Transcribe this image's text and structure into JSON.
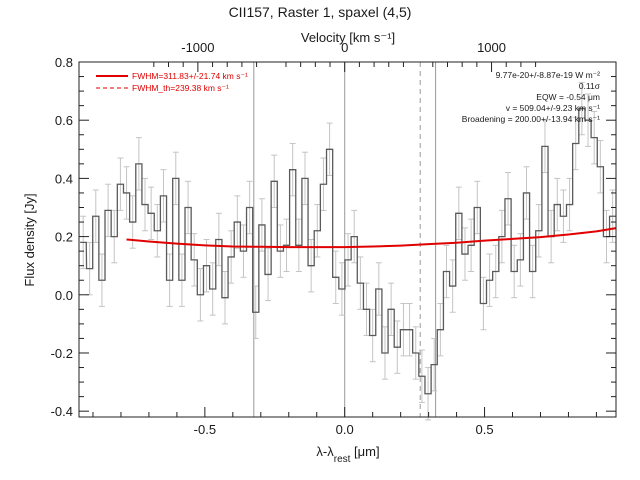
{
  "chart_data": {
    "type": "line",
    "title": "CII157, Raster 1, spaxel (4,5)",
    "xlabel_html": "λ-λ<tspan baseline-shift=\"sub\" font-size=\"10\">rest</tspan> [μm]",
    "xlabel_plain": "λ-λrest [μm]",
    "ylabel": "Flux density [Jy]",
    "top_axis_label": "Velocity [km s⁻¹]",
    "xlim": [
      -0.95,
      0.97
    ],
    "ylim": [
      -0.42,
      0.8
    ],
    "x_ticks": [
      "-0.5",
      "0.0",
      "0.5"
    ],
    "x_tick_values": [
      -0.5,
      0.0,
      0.5
    ],
    "y_ticks": [
      "-0.4",
      "-0.2",
      "0.0",
      "0.2",
      "0.4",
      "0.6",
      "0.8"
    ],
    "y_tick_values": [
      -0.4,
      -0.2,
      0.0,
      0.2,
      0.4,
      0.6,
      0.8
    ],
    "top_ticks": [
      "-1000",
      "0",
      "1000"
    ],
    "top_tick_x_values": [
      -0.525,
      0.0,
      0.525
    ],
    "legend": [
      {
        "label": "FWHM=311.83+/-21.74 km s⁻¹",
        "style": "solid",
        "color": "#e00000"
      },
      {
        "label": "FWHM_th=239.38 km s⁻¹",
        "style": "dashed",
        "color": "#e00000"
      }
    ],
    "annotations": [
      "9.77e-20+/-8.87e-19 W m⁻²",
      "0.11σ",
      "EQW = -0.54 μm",
      "v = 509.04+/-9.23 km s⁻¹",
      "Broadening = 200.00+/-13.94 km s⁻¹"
    ],
    "vertical_lines": [
      {
        "x": -0.325,
        "style": "solid"
      },
      {
        "x": 0.0,
        "style": "solid"
      },
      {
        "x": 0.325,
        "style": "solid"
      },
      {
        "x": 0.27,
        "style": "dashed"
      }
    ],
    "series": [
      {
        "name": "data",
        "style": "step",
        "color": "#555555",
        "x": [
          -0.935,
          -0.912,
          -0.89,
          -0.868,
          -0.846,
          -0.824,
          -0.802,
          -0.78,
          -0.758,
          -0.736,
          -0.714,
          -0.692,
          -0.67,
          -0.648,
          -0.626,
          -0.604,
          -0.582,
          -0.56,
          -0.538,
          -0.516,
          -0.494,
          -0.472,
          -0.45,
          -0.428,
          -0.406,
          -0.384,
          -0.362,
          -0.34,
          -0.318,
          -0.296,
          -0.274,
          -0.252,
          -0.23,
          -0.208,
          -0.186,
          -0.164,
          -0.142,
          -0.12,
          -0.098,
          -0.076,
          -0.054,
          -0.032,
          -0.01,
          0.012,
          0.034,
          0.056,
          0.078,
          0.1,
          0.122,
          0.144,
          0.166,
          0.188,
          0.21,
          0.232,
          0.254,
          0.276,
          0.298,
          0.32,
          0.342,
          0.364,
          0.386,
          0.408,
          0.43,
          0.452,
          0.474,
          0.496,
          0.518,
          0.54,
          0.562,
          0.584,
          0.606,
          0.628,
          0.65,
          0.672,
          0.694,
          0.716,
          0.738,
          0.76,
          0.782,
          0.804,
          0.826,
          0.848,
          0.87,
          0.892,
          0.914,
          0.936,
          0.958
        ],
        "y": [
          0.18,
          0.09,
          0.27,
          0.05,
          0.29,
          0.2,
          0.38,
          0.35,
          0.25,
          0.45,
          0.31,
          0.28,
          0.22,
          0.34,
          0.05,
          0.4,
          0.05,
          0.3,
          0.12,
          0.0,
          0.1,
          0.02,
          0.19,
          -0.01,
          0.13,
          0.25,
          0.15,
          0.3,
          -0.06,
          0.24,
          0.07,
          0.39,
          0.15,
          0.17,
          0.43,
          0.17,
          0.4,
          0.1,
          0.22,
          0.38,
          0.5,
          0.06,
          0.02,
          0.12,
          0.2,
          0.04,
          -0.05,
          -0.14,
          0.02,
          -0.2,
          -0.05,
          -0.18,
          -0.12,
          -0.12,
          -0.2,
          -0.28,
          -0.34,
          -0.24,
          -0.12,
          0.08,
          0.03,
          0.28,
          0.14,
          0.17,
          0.3,
          -0.03,
          0.05,
          0.08,
          0.2,
          0.33,
          0.08,
          0.12,
          0.35,
          0.08,
          0.22,
          0.51,
          0.2,
          0.31,
          0.27,
          0.31,
          0.52,
          0.64,
          0.6,
          0.54,
          0.44,
          0.2,
          0.27
        ]
      },
      {
        "name": "fit",
        "style": "line",
        "color": "#e00000",
        "x": [
          -0.78,
          -0.7,
          -0.6,
          -0.5,
          -0.4,
          -0.3,
          -0.2,
          -0.1,
          0.0,
          0.1,
          0.2,
          0.3,
          0.4,
          0.5,
          0.6,
          0.7,
          0.8,
          0.9,
          0.97
        ],
        "y": [
          0.19,
          0.183,
          0.176,
          0.17,
          0.166,
          0.165,
          0.164,
          0.164,
          0.164,
          0.166,
          0.169,
          0.174,
          0.179,
          0.186,
          0.192,
          0.198,
          0.207,
          0.218,
          0.229
        ]
      }
    ],
    "error_bar": 0.09
  }
}
